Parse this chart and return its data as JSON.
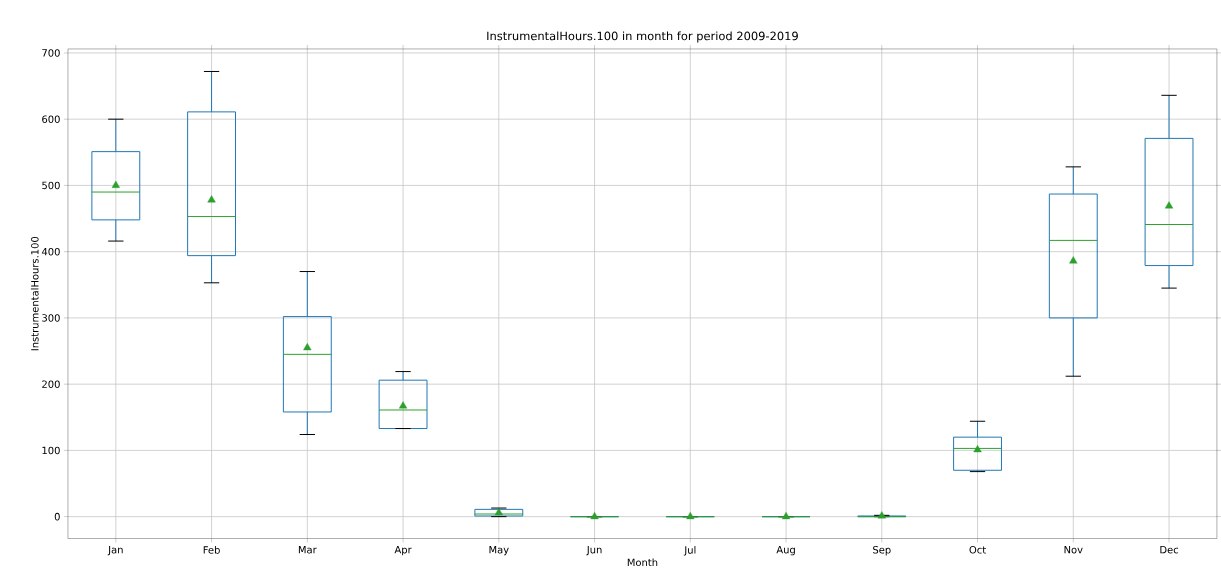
{
  "chart_data": {
    "type": "box",
    "title": "InstrumentalHours.100 in month for period 2009-2019",
    "xlabel": "Month",
    "ylabel": "InstrumentalHours.100",
    "categories": [
      "Jan",
      "Feb",
      "Mar",
      "Apr",
      "May",
      "Jun",
      "Jul",
      "Aug",
      "Sep",
      "Oct",
      "Nov",
      "Dec"
    ],
    "color": "#1f77b4",
    "marker": "triangle",
    "grid": true,
    "ylim": [
      -33,
      706
    ],
    "yticks": [
      0,
      100,
      200,
      300,
      400,
      500,
      600,
      700
    ],
    "boxes": [
      {
        "low": 416,
        "q1": 448,
        "median": 490,
        "q3": 551,
        "high": 600,
        "mean": 500
      },
      {
        "low": 353,
        "q1": 394,
        "median": 453,
        "q3": 611,
        "high": 672,
        "mean": 478
      },
      {
        "low": 124,
        "q1": 158,
        "median": 245,
        "q3": 302,
        "high": 370,
        "mean": 255
      },
      {
        "low": 133,
        "q1": 133,
        "median": 161,
        "q3": 206,
        "high": 219,
        "mean": 167
      },
      {
        "low": 0,
        "q1": 1,
        "median": 4,
        "q3": 11,
        "high": 13,
        "mean": 6
      },
      {
        "low": 0,
        "q1": 0,
        "median": 0,
        "q3": 0,
        "high": 0,
        "mean": 0
      },
      {
        "low": 0,
        "q1": 0,
        "median": 0,
        "q3": 0,
        "high": 0,
        "mean": 0
      },
      {
        "low": 0,
        "q1": 0,
        "median": 0,
        "q3": 0,
        "high": 0,
        "mean": 0
      },
      {
        "low": 0,
        "q1": 0,
        "median": 0,
        "q3": 1,
        "high": 2,
        "mean": 1
      },
      {
        "low": 68,
        "q1": 70,
        "median": 103,
        "q3": 120,
        "high": 144,
        "mean": 101
      },
      {
        "low": 212,
        "q1": 300,
        "median": 417,
        "q3": 487,
        "high": 528,
        "mean": 386
      },
      {
        "low": 345,
        "q1": 379,
        "median": 441,
        "q3": 571,
        "high": 636,
        "mean": 469
      }
    ]
  }
}
